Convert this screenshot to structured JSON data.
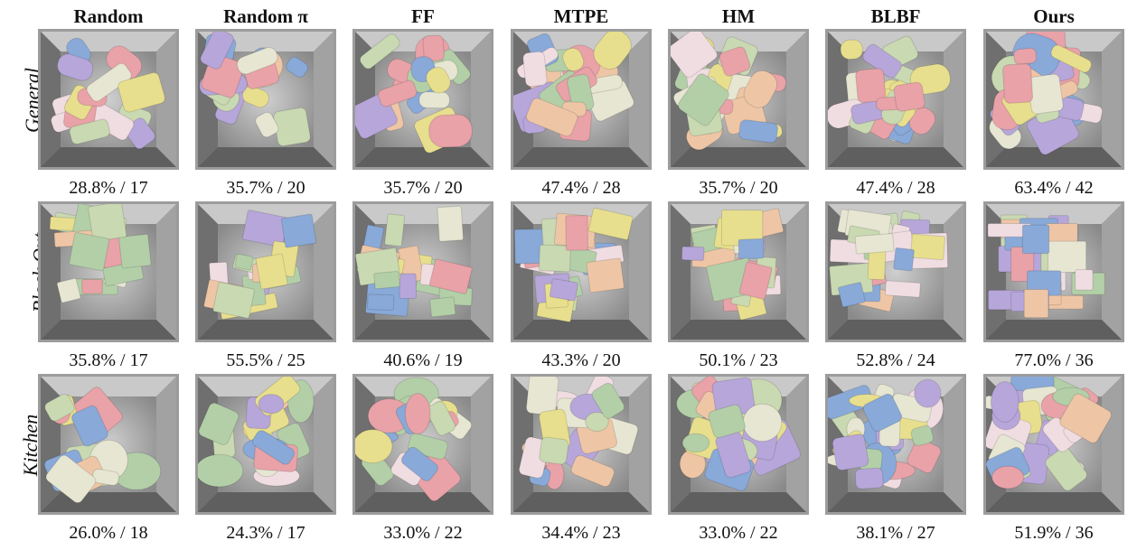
{
  "columns": [
    "Random",
    "Random π",
    "FF",
    "MTPE",
    "HM",
    "BLBF",
    "Ours"
  ],
  "rows": [
    {
      "label": "General",
      "scene": "general",
      "results": [
        "28.8% / 17",
        "35.7% / 20",
        "35.7% / 20",
        "47.4% / 28",
        "35.7% / 20",
        "47.4% / 28",
        "63.4% / 42"
      ]
    },
    {
      "label": "Block Out",
      "scene": "blocks",
      "results": [
        "35.8% / 17",
        "55.5% / 25",
        "40.6% / 19",
        "43.3% / 20",
        "50.1% / 23",
        "52.8% / 24",
        "77.0% / 36"
      ]
    },
    {
      "label": "Kitchen",
      "scene": "kitchen",
      "results": [
        "26.0% / 18",
        "24.3% / 17",
        "33.0% / 22",
        "34.4% / 23",
        "33.0% / 22",
        "38.1% / 27",
        "51.9% / 36"
      ]
    }
  ],
  "palette": [
    "#e8a2a8",
    "#b3cfa8",
    "#e8df8e",
    "#89a9d8",
    "#b7a6d9",
    "#eec6a6",
    "#f0dde2",
    "#e6e6d2",
    "#c9d9b2"
  ]
}
